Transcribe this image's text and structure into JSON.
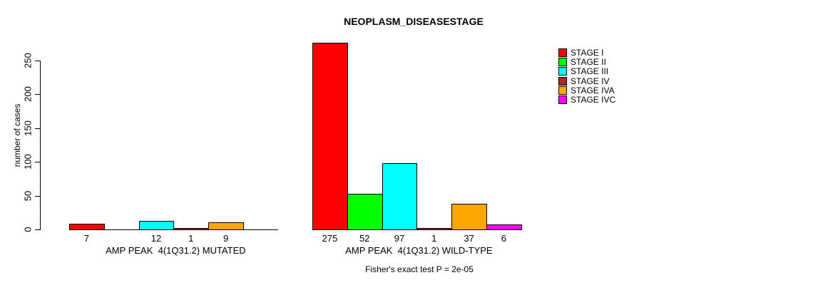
{
  "chart_data": {
    "type": "bar",
    "title": "NEOPLASM_DISEASESTAGE",
    "xlabel": "",
    "ylabel": "number of cases",
    "ylim": [
      0,
      250
    ],
    "yticks": [
      0,
      50,
      100,
      150,
      200,
      250
    ],
    "grid": false,
    "legend_position": "right",
    "categories": [
      "STAGE I",
      "STAGE II",
      "STAGE III",
      "STAGE IV",
      "STAGE IVA",
      "STAGE IVC"
    ],
    "colors": [
      "#ff0000",
      "#00ff00",
      "#00ffff",
      "#a52a2a",
      "#ffa500",
      "#ff00ff"
    ],
    "series": [
      {
        "name": "AMP PEAK  4(1Q31.2) MUTATED",
        "values": [
          7,
          0,
          12,
          1,
          9,
          0
        ]
      },
      {
        "name": "AMP PEAK  4(1Q31.2) WILD-TYPE",
        "values": [
          275,
          52,
          97,
          1,
          37,
          6
        ]
      }
    ],
    "bar_value_labels_show_zero": false,
    "footnote": "Fisher's exact test P = 2e-05"
  }
}
